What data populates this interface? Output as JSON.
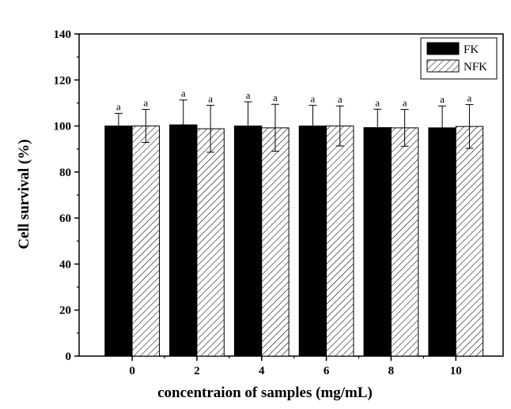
{
  "chart_data": {
    "type": "bar",
    "title": "",
    "xlabel": "concentraion of samples (mg/mL)",
    "ylabel": "Cell survival (%)",
    "categories": [
      "0",
      "2",
      "4",
      "6",
      "8",
      "10"
    ],
    "ylim": [
      0,
      140
    ],
    "yticks": [
      0,
      20,
      40,
      60,
      80,
      100,
      120,
      140
    ],
    "grid": false,
    "legend_position": "top-right",
    "series": [
      {
        "name": "FK",
        "fill": "solid-black",
        "color": "#000000",
        "values": [
          100,
          100.5,
          100,
          100,
          99.3,
          99.2
        ],
        "errors": [
          5.5,
          10.8,
          10.5,
          9,
          8,
          9.5
        ],
        "labels": [
          "a",
          "a",
          "a",
          "a",
          "a",
          "a"
        ]
      },
      {
        "name": "NFK",
        "fill": "diagonal-hatch",
        "color": "#000000",
        "values": [
          100,
          98.8,
          99.2,
          100,
          99.2,
          99.8
        ],
        "errors": [
          7.2,
          10.2,
          10.2,
          8.7,
          8,
          9.5
        ],
        "labels": [
          "a",
          "a",
          "a",
          "a",
          "a",
          "a"
        ]
      }
    ]
  }
}
